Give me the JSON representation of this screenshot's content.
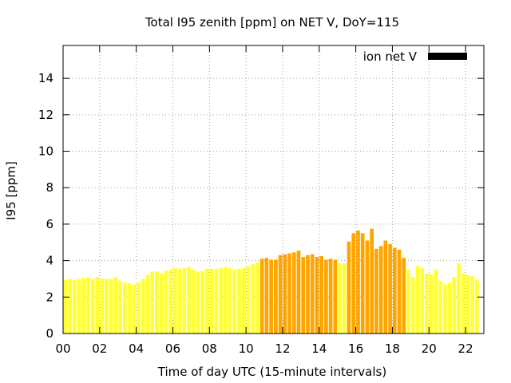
{
  "chart_data": {
    "type": "bar",
    "title": "Total I95 zenith [ppm] on NET V, DoY=115",
    "xlabel": "Time of day UTC (15-minute intervals)",
    "ylabel": "I95 [ppm]",
    "xlim": [
      0,
      23
    ],
    "ylim": [
      0,
      15.8
    ],
    "x_ticks": [
      "00",
      "02",
      "04",
      "06",
      "08",
      "10",
      "12",
      "14",
      "16",
      "18",
      "20",
      "22"
    ],
    "y_ticks": [
      "0",
      "2",
      "4",
      "6",
      "8",
      "10",
      "12",
      "14"
    ],
    "grid": true,
    "legend": {
      "label": "ion net V",
      "color": "#000000",
      "placement": "top-right"
    },
    "colors": {
      "low": "#ffff33",
      "elevated": "#ffa500"
    },
    "threshold": 4.0,
    "interval_hours": 0.25,
    "values": [
      2.95,
      3.0,
      2.95,
      3.0,
      3.05,
      3.1,
      3.0,
      3.1,
      3.0,
      3.0,
      3.0,
      3.1,
      2.9,
      2.8,
      2.75,
      2.7,
      2.8,
      3.0,
      3.2,
      3.4,
      3.4,
      3.3,
      3.45,
      3.5,
      3.6,
      3.55,
      3.6,
      3.65,
      3.5,
      3.4,
      3.45,
      3.55,
      3.55,
      3.55,
      3.6,
      3.65,
      3.6,
      3.5,
      3.55,
      3.6,
      3.7,
      3.8,
      3.9,
      4.1,
      4.15,
      4.05,
      4.05,
      4.3,
      4.35,
      4.4,
      4.45,
      4.55,
      4.2,
      4.3,
      4.35,
      4.2,
      4.25,
      4.05,
      4.1,
      4.05,
      3.85,
      3.85,
      5.05,
      5.5,
      5.65,
      5.5,
      5.1,
      5.75,
      4.65,
      4.8,
      5.1,
      4.9,
      4.7,
      4.6,
      4.15,
      3.5,
      3.1,
      3.7,
      3.6,
      3.3,
      3.25,
      3.5,
      2.9,
      2.7,
      2.8,
      3.1,
      3.85,
      3.3,
      3.2,
      3.15,
      2.95
    ]
  }
}
